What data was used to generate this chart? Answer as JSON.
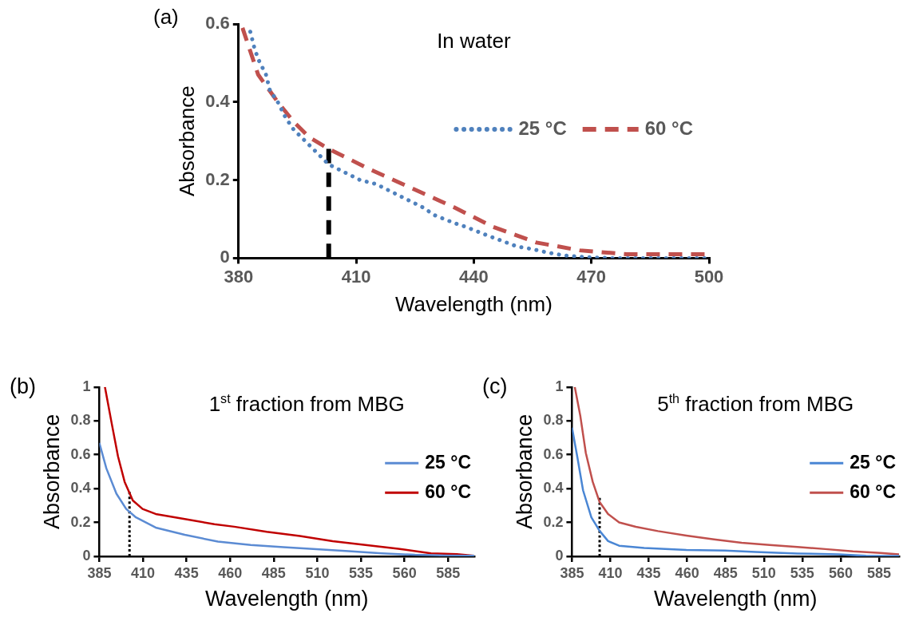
{
  "chart_data": [
    {
      "type": "line",
      "title": "In water",
      "xlabel": "Wavelength (nm)",
      "ylabel": "Absorbance",
      "annotations": [
        "(a)"
      ],
      "xlim": [
        380,
        500
      ],
      "xticks": [
        380,
        410,
        440,
        470,
        500
      ],
      "ylim": [
        0,
        0.6
      ],
      "yticks": [
        0,
        0.2,
        0.4,
        0.6
      ],
      "grid": false,
      "legend": "top right",
      "marker": "none",
      "series": [
        {
          "name": "25 °C",
          "color": "#4f81bd",
          "line_style": "dotted",
          "x": [
            383,
            384,
            385,
            387,
            388,
            390,
            392,
            394,
            397,
            400,
            403,
            407,
            411,
            415,
            419,
            423,
            427,
            430,
            435,
            438,
            443,
            447,
            451,
            455,
            459,
            463,
            468,
            475,
            485,
            500
          ],
          "values": [
            0.58,
            0.54,
            0.51,
            0.47,
            0.43,
            0.4,
            0.36,
            0.33,
            0.3,
            0.27,
            0.24,
            0.22,
            0.2,
            0.19,
            0.17,
            0.15,
            0.13,
            0.11,
            0.09,
            0.08,
            0.06,
            0.045,
            0.03,
            0.023,
            0.014,
            0.007,
            0.003,
            0,
            0,
            0
          ]
        },
        {
          "name": "60 °C",
          "color": "#c0504d",
          "line_style": "dashed",
          "x": [
            381,
            385,
            390,
            394,
            398,
            403,
            413,
            424,
            435,
            445,
            456,
            467,
            479,
            500
          ],
          "values": [
            0.59,
            0.47,
            0.4,
            0.35,
            0.31,
            0.28,
            0.23,
            0.18,
            0.13,
            0.08,
            0.04,
            0.02,
            0.01,
            0.01
          ]
        },
        {
          "color": "#000000",
          "line_style": "dashed",
          "x": [
            403,
            403
          ],
          "values": [
            0,
            0.28
          ]
        }
      ]
    },
    {
      "type": "line",
      "title": "1$^{st}$ fraction from MBG",
      "xlabel": "Wavelength (nm)",
      "ylabel": "Absorbance",
      "annotations": [
        "(b)"
      ],
      "xlim": [
        385,
        600
      ],
      "xticks": [
        385,
        410,
        435,
        460,
        485,
        510,
        535,
        560,
        585
      ],
      "ylim": [
        0,
        1
      ],
      "yticks": [
        0,
        0.2,
        0.4,
        0.6,
        0.8,
        1
      ],
      "grid": false,
      "legend": "right",
      "marker": "none",
      "series": [
        {
          "name": "25 °C",
          "color": "#5b8bd3",
          "line_style": "solid",
          "x": [
            385,
            389,
            394.8,
            400.4,
            406,
            417.3,
            434,
            453,
            471.8,
            490.6,
            509.4,
            528,
            547,
            566,
            585,
            600
          ],
          "values": [
            0.67,
            0.52,
            0.37,
            0.28,
            0.23,
            0.17,
            0.127,
            0.087,
            0.067,
            0.054,
            0.042,
            0.031,
            0.018,
            0.009,
            0.005,
            0.004
          ]
        },
        {
          "name": "60 °C",
          "color": "#c00000",
          "line_style": "solid",
          "x": [
            388.2,
            392,
            395.7,
            399.5,
            404.2,
            409.8,
            417.3,
            434,
            451,
            462.4,
            481,
            500,
            518.8,
            537.6,
            556.4,
            575.2,
            590,
            600
          ],
          "values": [
            1,
            0.79,
            0.59,
            0.44,
            0.33,
            0.28,
            0.25,
            0.22,
            0.19,
            0.175,
            0.145,
            0.12,
            0.09,
            0.067,
            0.045,
            0.018,
            0.013,
            0.004
          ]
        },
        {
          "color": "#000000",
          "line_style": "dotted",
          "x": [
            402.3,
            402.3
          ],
          "values": [
            0,
            0.38
          ]
        }
      ]
    },
    {
      "type": "line",
      "title": "5$^{th}$ fraction from MBG",
      "xlabel": "Wavelength (nm)",
      "ylabel": "Absorbance",
      "annotations": [
        "(c)"
      ],
      "xlim": [
        385,
        598
      ],
      "xticks": [
        385,
        410,
        435,
        460,
        485,
        510,
        535,
        560,
        585
      ],
      "ylim": [
        0,
        1
      ],
      "yticks": [
        0,
        0.2,
        0.4,
        0.6,
        0.8,
        1
      ],
      "grid": false,
      "legend": "right",
      "marker": "none",
      "series": [
        {
          "name": "25 °C",
          "color": "#4a86d4",
          "line_style": "solid",
          "x": [
            385,
            388.6,
            392.2,
            397.6,
            403,
            408.5,
            415.7,
            432,
            459.5,
            484.6,
            504.6,
            531.8,
            558.6,
            576.5,
            598
          ],
          "values": [
            0.76,
            0.58,
            0.39,
            0.23,
            0.15,
            0.09,
            0.063,
            0.05,
            0.038,
            0.034,
            0.026,
            0.017,
            0.012,
            0.003,
            0.002
          ]
        },
        {
          "name": "60 °C",
          "color": "#c0504d",
          "line_style": "solid",
          "x": [
            386.8,
            390.4,
            394,
            398.5,
            403,
            408.5,
            415.7,
            426.6,
            441,
            459.5,
            477.5,
            495.5,
            513.7,
            531.8,
            549.9,
            568,
            586,
            598
          ],
          "values": [
            1,
            0.83,
            0.61,
            0.44,
            0.32,
            0.25,
            0.2,
            0.174,
            0.149,
            0.123,
            0.1,
            0.08,
            0.067,
            0.055,
            0.043,
            0.029,
            0.02,
            0.012
          ]
        },
        {
          "color": "#000000",
          "line_style": "dotted",
          "x": [
            403,
            403
          ],
          "values": [
            0,
            0.345
          ]
        }
      ]
    }
  ]
}
